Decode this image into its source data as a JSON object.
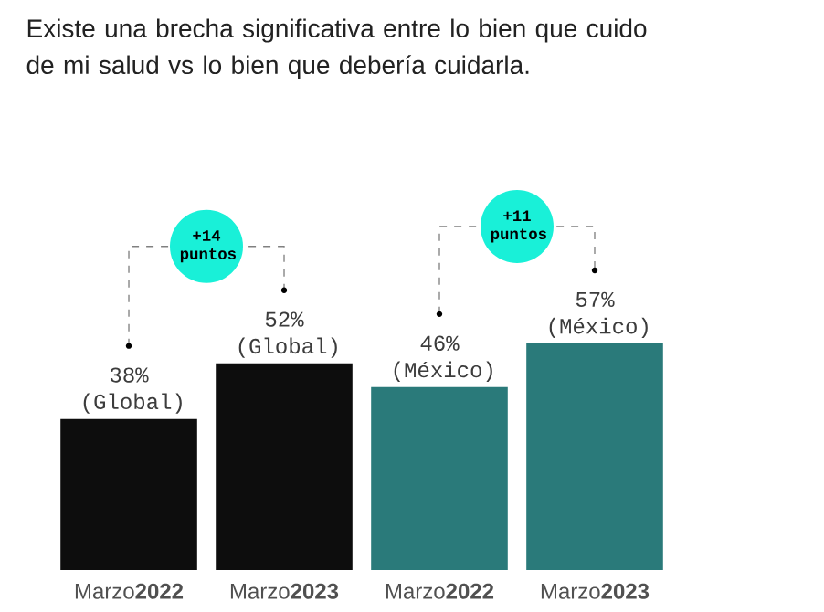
{
  "chart_data": {
    "type": "bar",
    "title": "Existe una brecha significativa entre lo bien que cuido de mi salud vs lo bien que debería cuidarla.",
    "categories": [
      "Marzo**2022**",
      "Marzo**2023**",
      "Marzo**2022**",
      "Marzo**2023**"
    ],
    "values": [
      38,
      52,
      46,
      57
    ],
    "colors": [
      "#0d0d0d",
      "#0d0d0d",
      "#2a7a7a",
      "#2a7a7a"
    ],
    "value_labels": [
      "38% (Global)",
      "52% (Global)",
      "46% (México)",
      "57% (México)"
    ],
    "annotations": [
      "+14 puntos",
      "+11 puntos"
    ]
  }
}
